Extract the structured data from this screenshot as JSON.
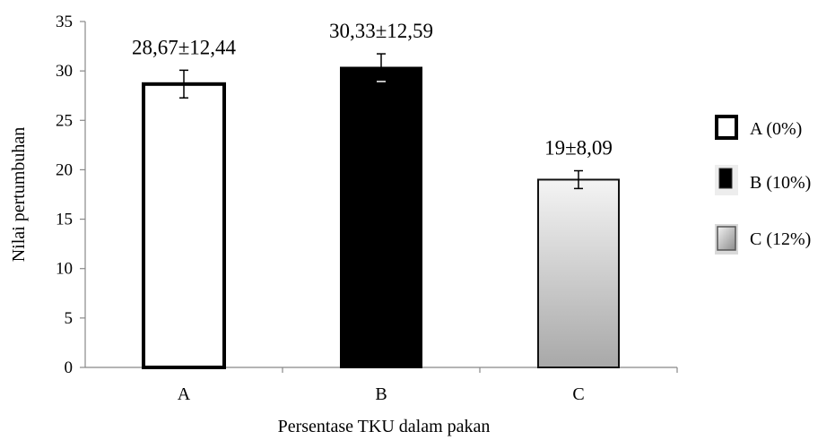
{
  "chart_data": {
    "type": "bar",
    "categories": [
      "A",
      "B",
      "C"
    ],
    "values": [
      28.67,
      30.33,
      19
    ],
    "error": [
      1.4,
      1.4,
      0.9
    ],
    "data_labels": [
      "28,67±12,44",
      "30,33±12,59",
      "19±8,09"
    ],
    "xlabel": "Persentase TKU dalam pakan",
    "ylabel": "Nilai pertumbuhan",
    "ylim": [
      0,
      35
    ],
    "yticks": [
      0,
      5,
      10,
      15,
      20,
      25,
      30,
      35
    ],
    "grid": false,
    "legend": {
      "placement": "right",
      "entries": [
        "A (0%)",
        "B (10%)",
        "C (12%)"
      ]
    },
    "colors": {
      "A": "#ffffff",
      "B": "#000000",
      "C_light": "#f4f4f4",
      "C_dark": "#a8a8a8",
      "outline": "#000000"
    }
  }
}
